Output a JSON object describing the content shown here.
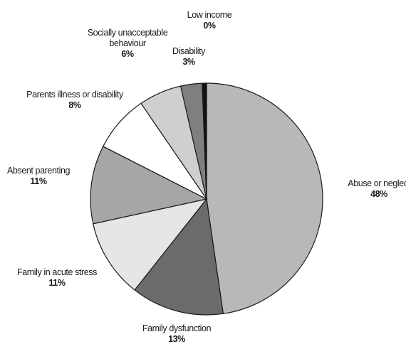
{
  "chart_data": {
    "type": "pie",
    "title": "",
    "slices": [
      {
        "label": "Abuse or neglect",
        "value": 48,
        "display": "48%",
        "color": "#b8b8b8"
      },
      {
        "label": "Family dysfunction",
        "value": 13,
        "display": "13%",
        "color": "#6b6b6b"
      },
      {
        "label": "Family in acute stress",
        "value": 11,
        "display": "11%",
        "color": "#e6e6e6"
      },
      {
        "label": "Absent parenting",
        "value": 11,
        "display": "11%",
        "color": "#a6a6a6"
      },
      {
        "label": "Parents illness or disability",
        "value": 8,
        "display": "8%",
        "color": "#ffffff"
      },
      {
        "label": "Socially unacceptable behaviour",
        "value": 6,
        "display": "6%",
        "color": "#cfcfcf"
      },
      {
        "label": "Disability",
        "value": 3,
        "display": "3%",
        "color": "#7f7f7f"
      },
      {
        "label": "Low income",
        "value": 0.6,
        "display": "0%",
        "color": "#111111"
      }
    ],
    "start": "12 o'clock, clockwise",
    "legend": "none (labels beside slices)"
  }
}
